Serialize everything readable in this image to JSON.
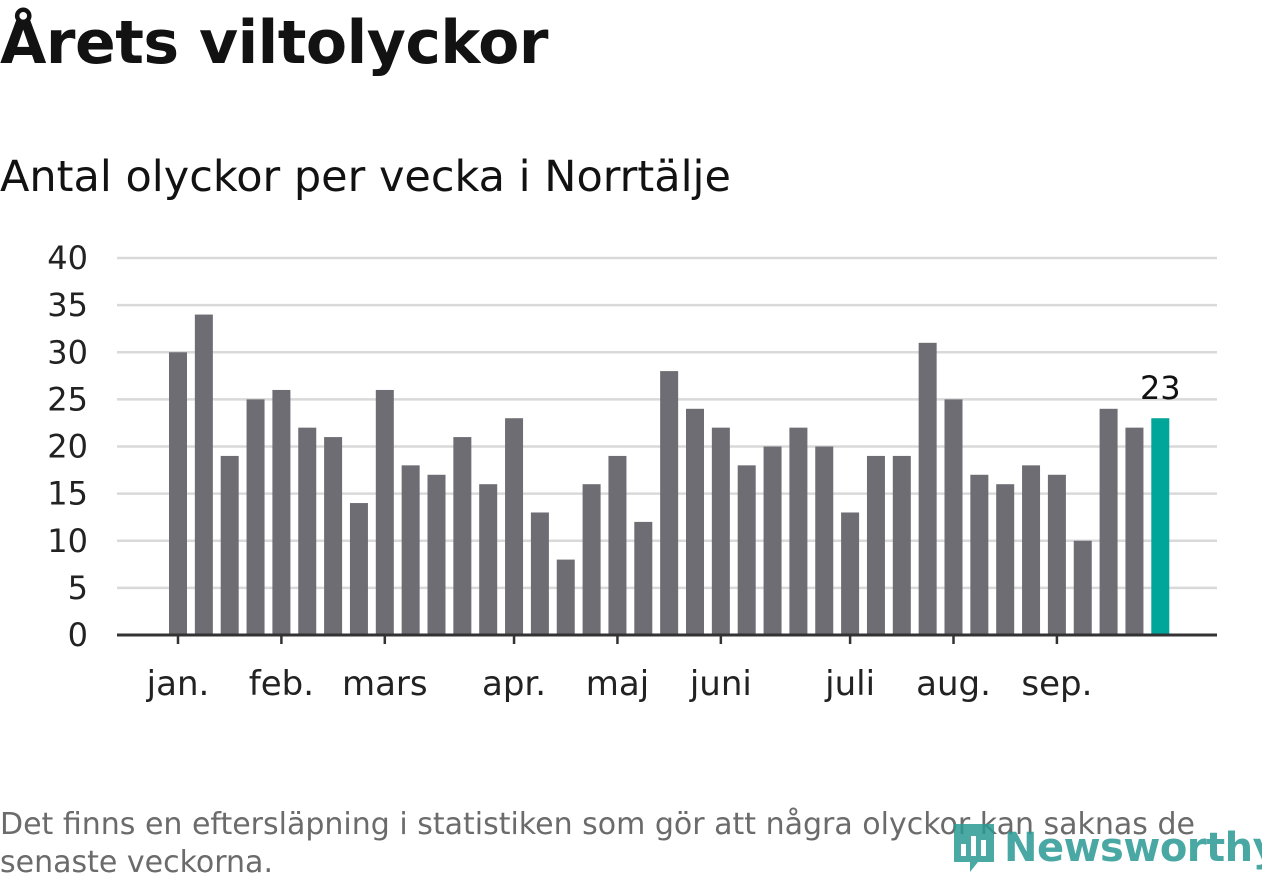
{
  "header": {
    "title": "Årets viltolyckor",
    "subtitle": "Antal olyckor per vecka i Norrtälje"
  },
  "footer": {
    "note": "Det finns en eftersläpning i statistiken som gör att några olyckor kan saknas de senaste veckorna.",
    "logo_text": "Newsworthy",
    "logo_icon": "bar-chart-icon"
  },
  "colors": {
    "bar": "#6e6d73",
    "highlight": "#00a699",
    "grid": "#d9d9d9",
    "axis": "#333333"
  },
  "chart_data": {
    "type": "bar",
    "title": "Antal olyckor per vecka i Norrtälje",
    "xlabel": "",
    "ylabel": "",
    "ylim": [
      0,
      40
    ],
    "yticks": [
      0,
      5,
      10,
      15,
      20,
      25,
      30,
      35,
      40
    ],
    "grid": true,
    "values": [
      30,
      34,
      19,
      25,
      26,
      22,
      21,
      14,
      26,
      18,
      17,
      21,
      16,
      23,
      13,
      8,
      16,
      19,
      12,
      28,
      24,
      22,
      18,
      20,
      22,
      20,
      13,
      19,
      19,
      31,
      25,
      17,
      16,
      18,
      17,
      10,
      24,
      22,
      23
    ],
    "highlight_index": 38,
    "highlight_label": "23",
    "month_labels": [
      {
        "label": "jan.",
        "bar_index": 0.5
      },
      {
        "label": "feb.",
        "bar_index": 4.5
      },
      {
        "label": "mars",
        "bar_index": 8.5
      },
      {
        "label": "apr.",
        "bar_index": 13.5
      },
      {
        "label": "maj",
        "bar_index": 17.5
      },
      {
        "label": "juni",
        "bar_index": 21.5
      },
      {
        "label": "juli",
        "bar_index": 26.5
      },
      {
        "label": "aug.",
        "bar_index": 30.5
      },
      {
        "label": "sep.",
        "bar_index": 34.5
      }
    ]
  }
}
